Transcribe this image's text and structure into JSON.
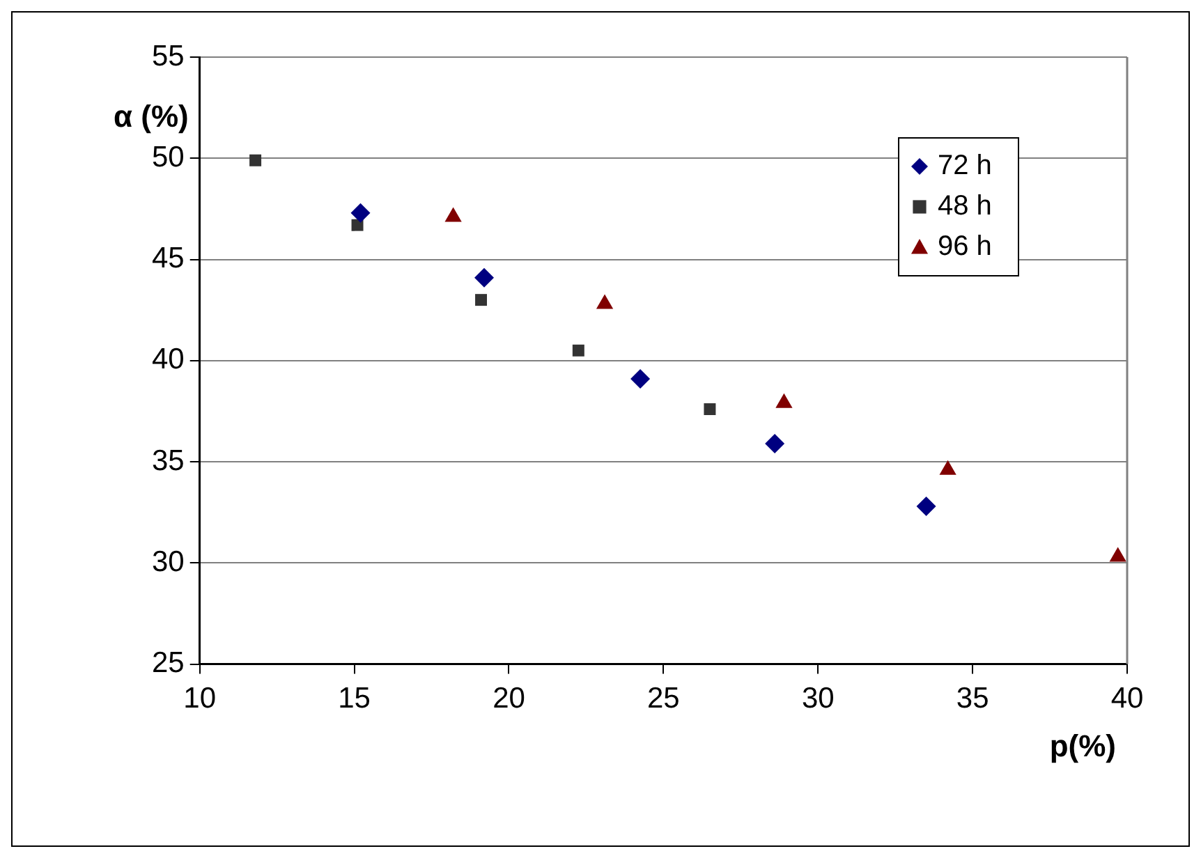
{
  "chart_data": {
    "type": "scatter",
    "xlabel": "p(%)",
    "ylabel": "α (%)",
    "xlim": [
      10,
      40
    ],
    "xticks": [
      10,
      15,
      20,
      25,
      30,
      35,
      40
    ],
    "ylim": [
      25,
      55
    ],
    "yticks": [
      25,
      30,
      35,
      40,
      45,
      50,
      55
    ],
    "grid": "y",
    "legend": "top right",
    "series": [
      {
        "name": "72 h",
        "color": "#000080",
        "marker": "diamond",
        "x": [
          15.2,
          19.2,
          24.25,
          28.6,
          33.5
        ],
        "values": [
          47.3,
          44.1,
          39.1,
          35.9,
          32.8
        ]
      },
      {
        "name": "48 h",
        "color": "#333333",
        "marker": "square",
        "x": [
          11.8,
          15.1,
          19.1,
          22.25,
          26.5
        ],
        "values": [
          49.9,
          46.7,
          43.0,
          40.5,
          37.6
        ]
      },
      {
        "name": "96 h",
        "color": "#800000",
        "marker": "triangle",
        "x": [
          18.2,
          23.1,
          28.9,
          34.2,
          39.7
        ],
        "values": [
          47.1,
          42.8,
          37.9,
          34.6,
          30.3
        ]
      }
    ]
  }
}
